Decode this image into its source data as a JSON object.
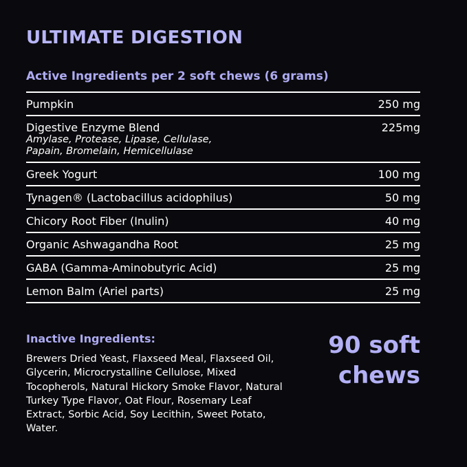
{
  "header": {
    "title": "ULTIMATE DIGESTION",
    "subtitle": "Active Ingredients per 2 soft chews (6 grams)"
  },
  "table": {
    "rows": [
      {
        "name": "Pumpkin",
        "amount": "250 mg"
      },
      {
        "name": "Digestive Enzyme Blend",
        "detail": [
          "Amylase, Protease, Lipase, Cellulase,",
          "Papain, Bromelain, Hemicellulase"
        ],
        "amount": "225mg"
      },
      {
        "name": "Greek Yogurt",
        "amount": "100 mg"
      },
      {
        "name": "Tynagen® (Lactobacillus acidophilus)",
        "amount": "50 mg"
      },
      {
        "name": "Chicory Root Fiber (Inulin)",
        "amount": "40 mg"
      },
      {
        "name": "Organic Ashwagandha Root",
        "amount": "25 mg"
      },
      {
        "name": "GABA (Gamma-Aminobutyric Acid)",
        "amount": "25 mg"
      },
      {
        "name": "Lemon Balm (Ariel parts)",
        "amount": "25 mg"
      }
    ]
  },
  "inactive": {
    "title": "Inactive Ingredients:",
    "lines": [
      "Brewers Dried Yeast, Flaxseed Meal, Flaxseed Oil,",
      "Glycerin, Microcrystalline Cellulose, Mixed",
      "Tocopherols, Natural Hickory Smoke Flavor, Natural",
      "Turkey Type Flavor, Oat Flour, Rosemary Leaf",
      "Extract, Sorbic Acid, Soy Lecithin, Sweet Potato,",
      "Water."
    ]
  },
  "count": {
    "lines": [
      "90 soft",
      "chews"
    ]
  }
}
